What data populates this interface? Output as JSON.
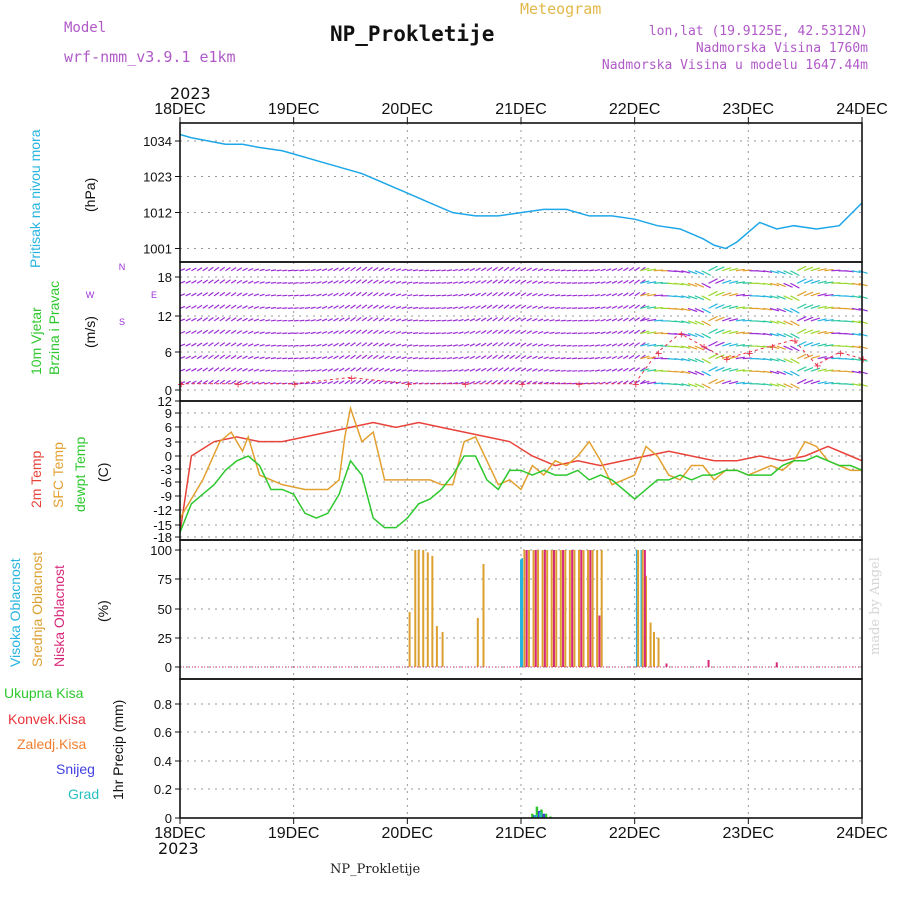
{
  "header": {
    "model_label": "Model",
    "model_name": "wrf-nmm_v3.9.1 e1km",
    "title": "NP_Prokletije",
    "meteogram_label": "Meteogram",
    "coords": "lon,lat (19.9125E, 42.5312N)",
    "elevation": "Nadmorska Visina 1760m",
    "model_elevation": "Nadmorska Visina u modelu 1647.44m"
  },
  "footer": {
    "station": "NP_Prokletije",
    "credit": "made by Angel"
  },
  "time_axis": {
    "year": "2023",
    "ticks": [
      "18DEC",
      "19DEC",
      "20DEC",
      "21DEC",
      "22DEC",
      "23DEC",
      "24DEC"
    ]
  },
  "colors": {
    "pressure": "#1ea7e8",
    "wind_purple": "#9b2fd6",
    "wind_red": "#e8324a",
    "temp2m": "#e8423a",
    "sfc_temp": "#e2a030",
    "dewpt": "#2ec82e",
    "cloud_high": "#27b4e0",
    "cloud_mid": "#dca030",
    "cloud_low": "#d8287a",
    "rain_total": "#2ec82e",
    "rain_conv": "#e8323a",
    "freezing": "#f08030",
    "snow": "#4040e0",
    "hail": "#27c0c0",
    "grid": "#999999"
  },
  "chart_data": [
    {
      "type": "line",
      "panel": "pressure",
      "ylabel_lines": [
        "Pritisak na nivou mora"
      ],
      "unit": "(hPa)",
      "yticks": [
        "1001",
        "1012",
        "1023",
        "1034"
      ],
      "ylim": [
        990,
        1040
      ],
      "series": [
        {
          "x": [
            0,
            0.1,
            0.25,
            0.4,
            0.55,
            0.7,
            0.9,
            1.0,
            1.2,
            1.4,
            1.6,
            1.8,
            2.0,
            2.2,
            2.4,
            2.6,
            2.8,
            3.0,
            3.2,
            3.4,
            3.6,
            3.8,
            4.0,
            4.2,
            4.4,
            4.6,
            4.7,
            4.8,
            4.9,
            5.0,
            5.1,
            5.25,
            5.4,
            5.6,
            5.8,
            6.0
          ],
          "values": [
            1036,
            1035,
            1034,
            1033,
            1033,
            1032,
            1031,
            1030,
            1028,
            1026,
            1024,
            1021,
            1018,
            1015,
            1012,
            1011,
            1011,
            1012,
            1013,
            1013,
            1011,
            1011,
            1010,
            1008,
            1007,
            1004,
            1002,
            1001,
            1003,
            1006,
            1009,
            1007,
            1008,
            1007,
            1008,
            1015
          ]
        }
      ]
    },
    {
      "type": "scatter",
      "panel": "wind",
      "ylabel_lines": [
        "10m Vjetar",
        "Brzina i Pravac"
      ],
      "unit": "(m/s)",
      "direction_legend": [
        "N",
        "S",
        "W",
        "E"
      ],
      "yticks": [
        "0",
        "6",
        "12",
        "18"
      ],
      "ylim": [
        0,
        20
      ],
      "rows": [
        1,
        3,
        5,
        7,
        9,
        11,
        13,
        15,
        17,
        19
      ],
      "speed_points": {
        "x": [
          0,
          0.5,
          1,
          1.5,
          2,
          2.5,
          3,
          3.5,
          4,
          4.2,
          4.4,
          4.6,
          4.8,
          5,
          5.2,
          5.4,
          5.6,
          5.8,
          6
        ],
        "values": [
          1,
          1,
          1,
          2,
          1,
          1,
          1,
          1,
          1,
          6,
          9,
          7,
          5,
          6,
          7,
          8,
          4,
          6,
          5
        ]
      }
    },
    {
      "type": "line",
      "panel": "temperature",
      "ylabel_lines": [
        "2m Temp",
        "SFC Temp",
        "dewpt Temp"
      ],
      "unit": "(C)",
      "yticks": [
        "-18",
        "-15",
        "-12",
        "-9",
        "-6",
        "-3",
        "0",
        "3",
        "6",
        "9",
        "12"
      ],
      "ylim": [
        -18,
        12
      ],
      "series": [
        {
          "name": "2m Temp",
          "x": [
            0,
            0.1,
            0.3,
            0.5,
            0.7,
            0.9,
            1.1,
            1.3,
            1.5,
            1.7,
            1.9,
            2.1,
            2.3,
            2.5,
            2.7,
            2.9,
            3.1,
            3.3,
            3.5,
            3.7,
            3.9,
            4.1,
            4.3,
            4.5,
            4.7,
            4.9,
            5.1,
            5.3,
            5.5,
            5.7,
            5.9,
            6.0
          ],
          "values": [
            -16,
            0,
            3,
            4,
            3,
            3,
            4,
            5,
            6,
            7,
            6,
            7,
            6,
            5,
            4,
            3,
            0,
            -2,
            -1,
            -2,
            -1,
            0,
            1,
            0,
            -1,
            -1,
            0,
            -1,
            0,
            2,
            0,
            -1
          ]
        },
        {
          "name": "SFC Temp",
          "x": [
            0,
            0.1,
            0.2,
            0.35,
            0.45,
            0.55,
            0.6,
            0.7,
            0.9,
            1.1,
            1.3,
            1.4,
            1.45,
            1.5,
            1.6,
            1.7,
            1.8,
            1.9,
            2.0,
            2.1,
            2.2,
            2.3,
            2.4,
            2.5,
            2.6,
            2.7,
            2.8,
            2.9,
            3.0,
            3.1,
            3.2,
            3.3,
            3.4,
            3.5,
            3.6,
            3.7,
            3.8,
            3.9,
            4.0,
            4.1,
            4.2,
            4.3,
            4.4,
            4.5,
            4.6,
            4.7,
            4.8,
            4.9,
            5.0,
            5.1,
            5.2,
            5.3,
            5.4,
            5.5,
            5.6,
            5.7,
            5.8,
            5.9,
            6.0
          ],
          "values": [
            -13,
            -9,
            -5,
            3,
            5,
            1,
            4,
            -4,
            -6,
            -7,
            -7,
            -5,
            4,
            10,
            3,
            5,
            -5,
            -5,
            -5,
            -5,
            -5,
            -6,
            -6,
            3,
            4,
            -1,
            -6,
            -5,
            -7,
            -2,
            -4,
            -1,
            -2,
            0,
            3,
            -1,
            -6,
            -5,
            -4,
            2,
            0,
            -4,
            -5,
            -2,
            -2,
            -5,
            -3,
            -3,
            -4,
            -3,
            -2,
            -3,
            -1,
            3,
            2,
            -1,
            -2,
            -3,
            -3
          ]
        },
        {
          "name": "dewpt Temp",
          "x": [
            0,
            0.1,
            0.2,
            0.3,
            0.4,
            0.5,
            0.6,
            0.7,
            0.8,
            0.9,
            1.0,
            1.1,
            1.2,
            1.3,
            1.4,
            1.5,
            1.6,
            1.7,
            1.8,
            1.9,
            2.0,
            2.1,
            2.2,
            2.3,
            2.4,
            2.5,
            2.6,
            2.7,
            2.8,
            2.9,
            3.0,
            3.1,
            3.2,
            3.3,
            3.4,
            3.5,
            3.6,
            3.7,
            3.8,
            3.9,
            4.0,
            4.1,
            4.2,
            4.3,
            4.4,
            4.5,
            4.6,
            4.7,
            4.8,
            4.9,
            5.0,
            5.1,
            5.2,
            5.3,
            5.4,
            5.5,
            5.6,
            5.7,
            5.8,
            5.9,
            6.0
          ],
          "values": [
            -16,
            -10,
            -8,
            -6,
            -3,
            -1,
            0,
            -2,
            -7,
            -7,
            -8,
            -12,
            -13,
            -12,
            -8,
            -1,
            -4,
            -13,
            -15,
            -15,
            -13,
            -10,
            -9,
            -7,
            -4,
            0,
            0,
            -5,
            -7,
            -3,
            -3,
            -4,
            -3,
            -4,
            -4,
            -3,
            -5,
            -4,
            -5,
            -7,
            -9,
            -7,
            -5,
            -5,
            -4,
            -5,
            -4,
            -4,
            -3,
            -3,
            -4,
            -4,
            -4,
            -2,
            -1,
            -1,
            0,
            -1,
            -2,
            -2,
            -3
          ]
        }
      ]
    },
    {
      "type": "bar",
      "panel": "clouds",
      "ylabel_lines": [
        "Visoka Oblacnost",
        "Srednja Oblacnost",
        "Niska Oblacnost"
      ],
      "unit": "(%)",
      "yticks": [
        "0",
        "25",
        "50",
        "75",
        "100"
      ],
      "ylim": [
        0,
        100
      ],
      "series": [
        {
          "name": "Visoka Oblacnost",
          "x": [
            3.0,
            3.01,
            4.02,
            4.06
          ],
          "values": [
            92,
            93,
            100,
            100
          ]
        },
        {
          "name": "Srednja Oblacnost",
          "x": [
            2.02,
            2.07,
            2.1,
            2.14,
            2.18,
            2.22,
            2.26,
            2.31,
            2.62,
            2.67,
            3.03,
            3.07,
            3.11,
            3.15,
            3.19,
            3.23,
            3.27,
            3.31,
            3.35,
            3.39,
            3.43,
            3.47,
            3.51,
            3.55,
            3.59,
            3.63,
            3.67,
            3.71,
            4.03,
            4.07,
            4.1,
            4.14,
            4.17,
            4.21
          ],
          "values": [
            47,
            100,
            100,
            100,
            98,
            95,
            35,
            30,
            42,
            88,
            100,
            100,
            100,
            100,
            100,
            100,
            100,
            100,
            100,
            100,
            100,
            100,
            100,
            100,
            100,
            100,
            100,
            100,
            100,
            100,
            78,
            38,
            30,
            25
          ]
        },
        {
          "name": "Niska Oblacnost",
          "x": [
            3.05,
            3.13,
            3.21,
            3.29,
            3.37,
            3.45,
            3.53,
            3.61,
            3.69,
            4.09,
            4.28,
            4.65,
            5.25
          ],
          "values": [
            100,
            100,
            100,
            100,
            100,
            100,
            100,
            100,
            44,
            100,
            3,
            6,
            4
          ]
        }
      ]
    },
    {
      "type": "bar",
      "panel": "precip",
      "ylabel_lines": [
        "1hr Precip (mm)"
      ],
      "unit": "(mm)",
      "legend": [
        "Ukupna Kisa",
        "Konvek.Kisa",
        "Zaledj.Kisa",
        "Snijeg",
        "Grad"
      ],
      "yticks": [
        "0",
        "0.2",
        "0.4",
        "0.6",
        "0.8"
      ],
      "ylim": [
        0,
        0.95
      ],
      "series": [
        {
          "name": "Ukupna Kisa",
          "x": [
            3.1,
            3.14,
            3.18,
            3.22,
            3.26
          ],
          "values": [
            0.03,
            0.08,
            0.06,
            0.03,
            0.01
          ]
        },
        {
          "name": "Snijeg",
          "x": [
            3.12,
            3.16,
            3.2
          ],
          "values": [
            0.02,
            0.05,
            0.03
          ]
        },
        {
          "name": "Grad",
          "x": [
            3.13,
            3.17
          ],
          "values": [
            0.02,
            0.04
          ]
        }
      ]
    }
  ]
}
